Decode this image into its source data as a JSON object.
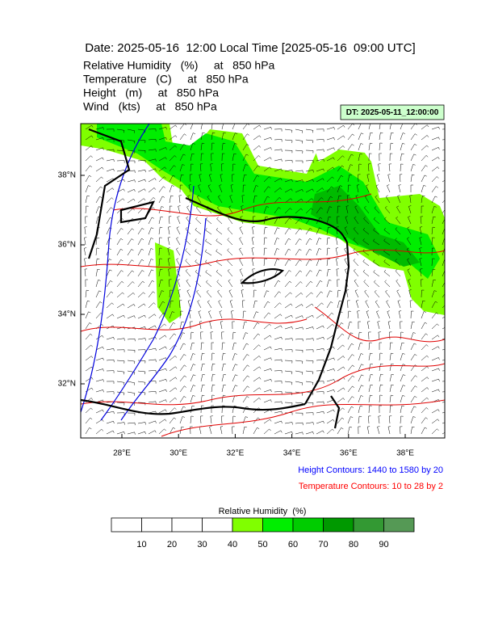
{
  "header": {
    "title": "Date: 2025-05-16  12:00 Local Time [2025-05-16  09:00 UTC]",
    "fields": [
      "Relative Humidity   (%)     at   850 hPa",
      "Temperature   (C)     at   850 hPa",
      "Height   (m)     at   850 hPa",
      "Wind   (kts)     at   850 hPa"
    ]
  },
  "dt_box": "DT: 2025-05-11_12:00:00",
  "map": {
    "lat_labels": [
      "38°N",
      "36°N",
      "34°N",
      "32°N"
    ],
    "lon_labels": [
      "28°E",
      "30°E",
      "32°E",
      "34°E",
      "36°E",
      "38°E"
    ]
  },
  "notes": {
    "height": "Height Contours: 1440 to 1580 by 20",
    "temperature": "Temperature Contours: 10 to 28 by 2"
  },
  "colorbar": {
    "title": "Relative Humidity  (%)",
    "labels": [
      10,
      20,
      30,
      40,
      50,
      60,
      70,
      80,
      90
    ],
    "colors": [
      "#ffffff",
      "#ffffff",
      "#ffffff",
      "#ffffff",
      "#80ff00",
      "#00ee00",
      "#00cc00",
      "#009900",
      "#339933",
      "#559955"
    ]
  }
}
